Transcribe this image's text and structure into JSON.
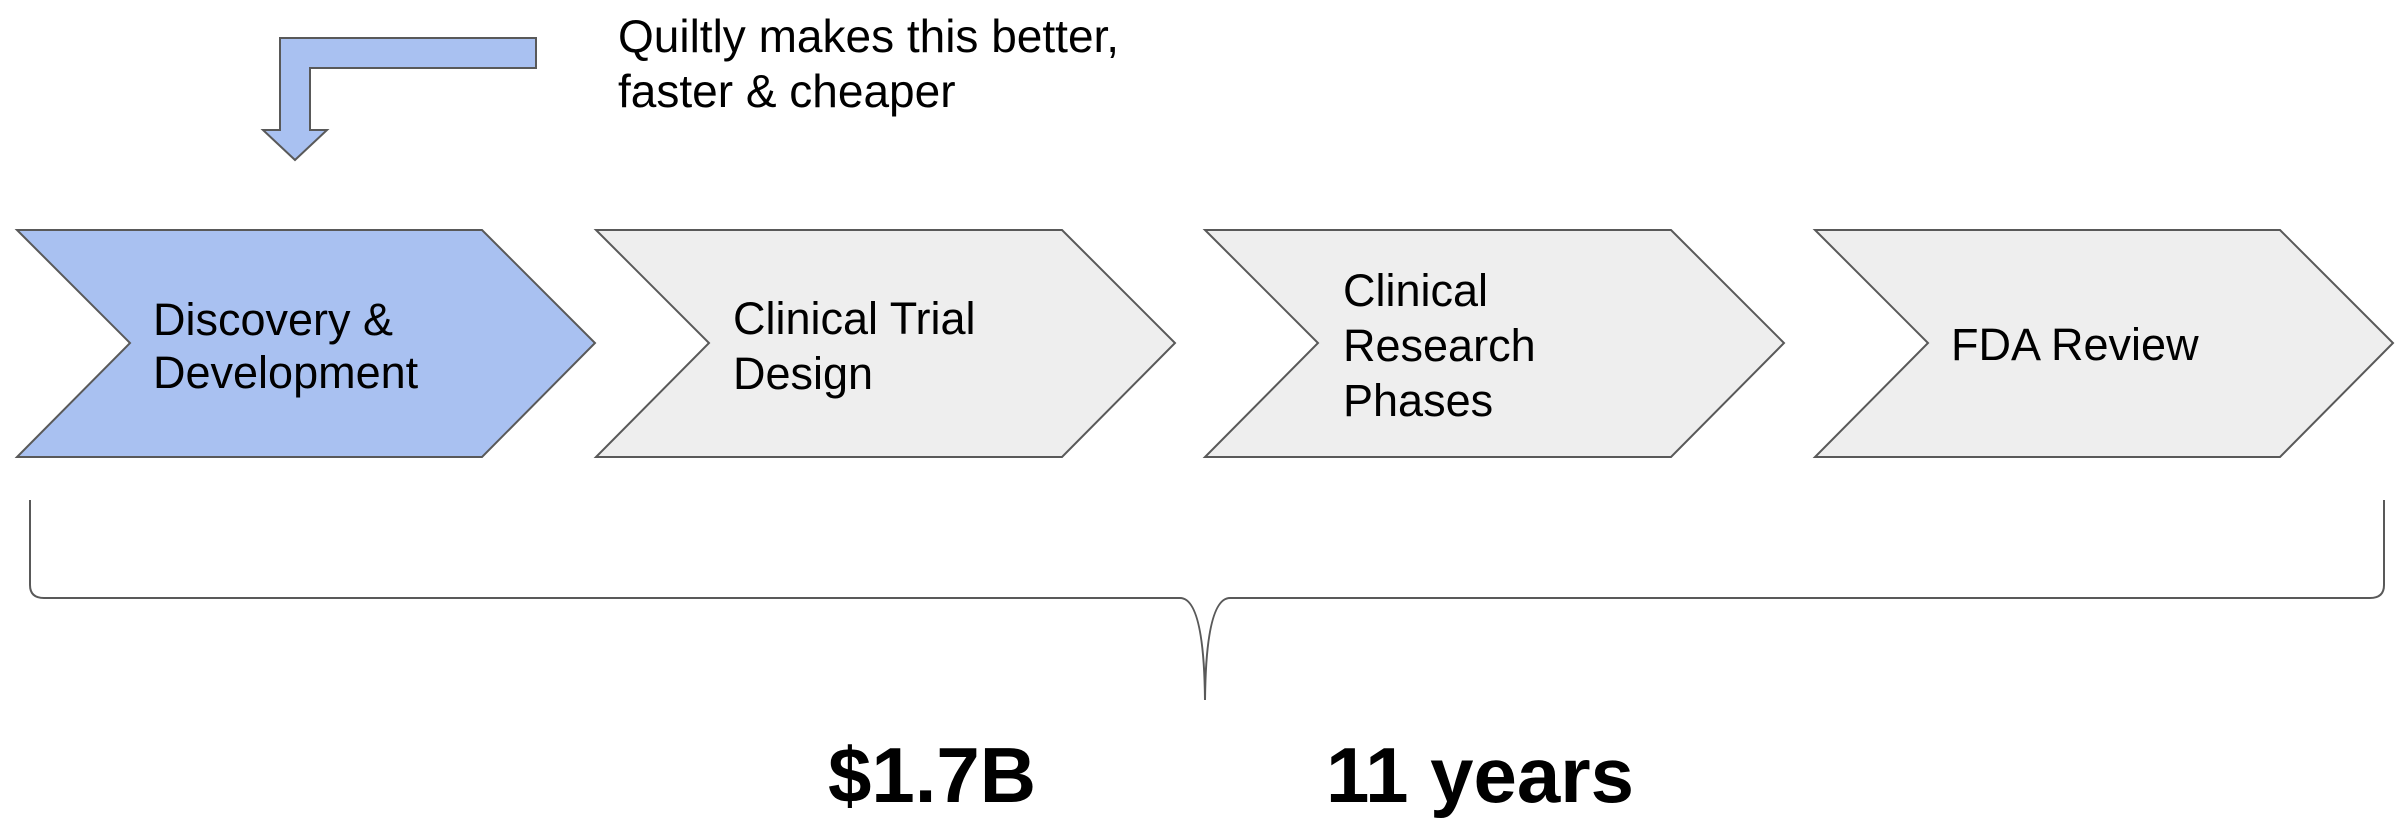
{
  "callout": {
    "lines": [
      "Quiltly makes this better,",
      "faster & cheaper"
    ]
  },
  "steps": [
    {
      "lines": [
        "Discovery &",
        "Development"
      ],
      "highlighted": true
    },
    {
      "lines": [
        "Clinical Trial",
        "Design"
      ],
      "highlighted": false
    },
    {
      "lines": [
        "Clinical",
        "Research",
        "Phases"
      ],
      "highlighted": false
    },
    {
      "lines": [
        "FDA Review"
      ],
      "highlighted": false
    }
  ],
  "stats": {
    "cost": "$1.7B",
    "duration": "11 years"
  },
  "colors": {
    "highlight_fill": "#a9c1f1",
    "default_fill": "#eeeeee",
    "stroke": "#595959"
  }
}
